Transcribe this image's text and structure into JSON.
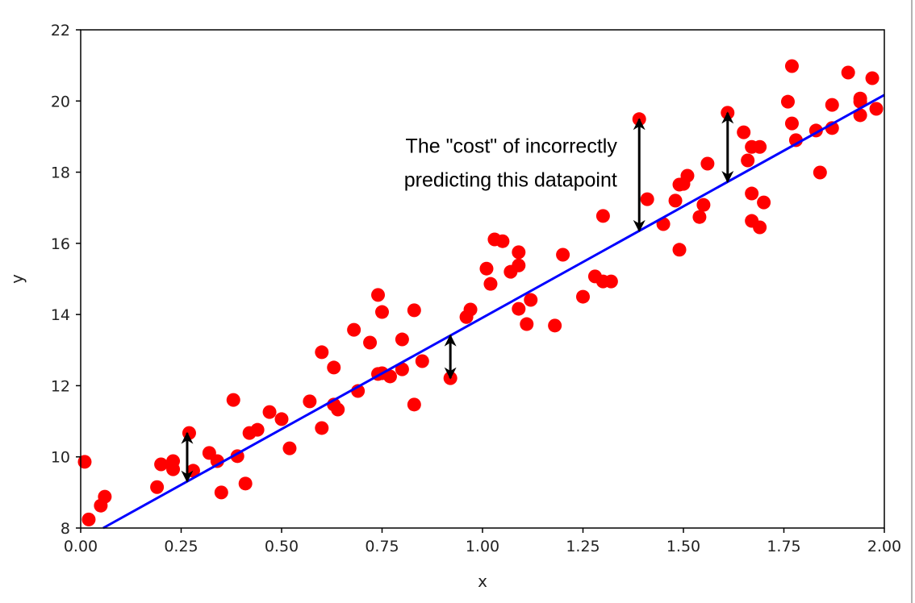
{
  "chart_data": {
    "type": "scatter",
    "title": "",
    "xlabel": "x",
    "ylabel": "y",
    "xlim": [
      0,
      2
    ],
    "ylim": [
      8,
      22
    ],
    "grid": false,
    "xticks": [
      "0.00",
      "0.25",
      "0.50",
      "0.75",
      "1.00",
      "1.25",
      "1.50",
      "1.75",
      "2.00"
    ],
    "yticks": [
      "8",
      "10",
      "12",
      "14",
      "16",
      "18",
      "20",
      "22"
    ],
    "colors": {
      "points": "#ff0000",
      "line": "#0000ff",
      "arrows": "#000000"
    },
    "fit_line": {
      "intercept": 7.65,
      "slope": 6.26
    },
    "annotation": {
      "lines": [
        "The \"cost\" of incorrectly",
        "predicting this datapoint"
      ],
      "x": 1.335,
      "y": 18.55
    },
    "residual_arrows": [
      {
        "x": 0.265,
        "y_point": 10.67,
        "y_line": 9.31
      },
      {
        "x": 0.92,
        "y_point": 12.21,
        "y_line": 13.41
      },
      {
        "x": 1.39,
        "y_point": 19.49,
        "y_line": 16.35
      },
      {
        "x": 1.61,
        "y_point": 19.67,
        "y_line": 17.73
      }
    ],
    "points": [
      [
        0.01,
        9.86
      ],
      [
        0.02,
        8.24
      ],
      [
        0.05,
        8.63
      ],
      [
        0.06,
        8.88
      ],
      [
        0.19,
        9.15
      ],
      [
        0.2,
        9.79
      ],
      [
        0.23,
        9.65
      ],
      [
        0.23,
        9.88
      ],
      [
        0.27,
        10.67
      ],
      [
        0.28,
        9.61
      ],
      [
        0.32,
        10.11
      ],
      [
        0.34,
        9.88
      ],
      [
        0.35,
        9.0
      ],
      [
        0.38,
        11.6
      ],
      [
        0.39,
        10.02
      ],
      [
        0.41,
        9.25
      ],
      [
        0.42,
        10.67
      ],
      [
        0.44,
        10.76
      ],
      [
        0.47,
        11.26
      ],
      [
        0.5,
        11.06
      ],
      [
        0.52,
        10.24
      ],
      [
        0.57,
        11.56
      ],
      [
        0.6,
        12.94
      ],
      [
        0.6,
        10.81
      ],
      [
        0.63,
        12.51
      ],
      [
        0.63,
        11.47
      ],
      [
        0.64,
        11.33
      ],
      [
        0.68,
        13.57
      ],
      [
        0.69,
        11.85
      ],
      [
        0.72,
        13.21
      ],
      [
        0.74,
        14.55
      ],
      [
        0.75,
        14.07
      ],
      [
        0.74,
        12.33
      ],
      [
        0.75,
        12.35
      ],
      [
        0.77,
        12.26
      ],
      [
        0.8,
        13.3
      ],
      [
        0.8,
        12.46
      ],
      [
        0.83,
        14.12
      ],
      [
        0.83,
        11.47
      ],
      [
        0.85,
        12.69
      ],
      [
        0.92,
        12.21
      ],
      [
        0.96,
        13.93
      ],
      [
        0.97,
        14.14
      ],
      [
        1.01,
        15.29
      ],
      [
        1.02,
        14.86
      ],
      [
        1.03,
        16.11
      ],
      [
        1.05,
        16.06
      ],
      [
        1.07,
        15.2
      ],
      [
        1.09,
        15.75
      ],
      [
        1.09,
        15.38
      ],
      [
        1.09,
        14.16
      ],
      [
        1.12,
        14.41
      ],
      [
        1.11,
        13.73
      ],
      [
        1.18,
        13.69
      ],
      [
        1.2,
        15.68
      ],
      [
        1.25,
        14.5
      ],
      [
        1.28,
        15.07
      ],
      [
        1.3,
        14.93
      ],
      [
        1.32,
        14.93
      ],
      [
        1.3,
        16.77
      ],
      [
        1.39,
        19.49
      ],
      [
        1.41,
        17.24
      ],
      [
        1.45,
        16.54
      ],
      [
        1.48,
        17.2
      ],
      [
        1.5,
        17.67
      ],
      [
        1.49,
        17.65
      ],
      [
        1.51,
        17.9
      ],
      [
        1.49,
        15.82
      ],
      [
        1.54,
        16.74
      ],
      [
        1.55,
        17.08
      ],
      [
        1.56,
        18.24
      ],
      [
        1.61,
        19.67
      ],
      [
        1.65,
        19.12
      ],
      [
        1.66,
        18.33
      ],
      [
        1.67,
        18.71
      ],
      [
        1.67,
        17.4
      ],
      [
        1.69,
        18.71
      ],
      [
        1.67,
        16.63
      ],
      [
        1.69,
        16.45
      ],
      [
        1.7,
        17.15
      ],
      [
        1.76,
        19.98
      ],
      [
        1.77,
        20.98
      ],
      [
        1.77,
        19.37
      ],
      [
        1.78,
        18.9
      ],
      [
        1.83,
        19.17
      ],
      [
        1.84,
        17.99
      ],
      [
        1.87,
        19.89
      ],
      [
        1.87,
        19.24
      ],
      [
        1.91,
        20.8
      ],
      [
        1.94,
        19.98
      ],
      [
        1.94,
        20.07
      ],
      [
        1.94,
        19.6
      ],
      [
        1.97,
        20.64
      ],
      [
        1.98,
        19.78
      ]
    ]
  }
}
